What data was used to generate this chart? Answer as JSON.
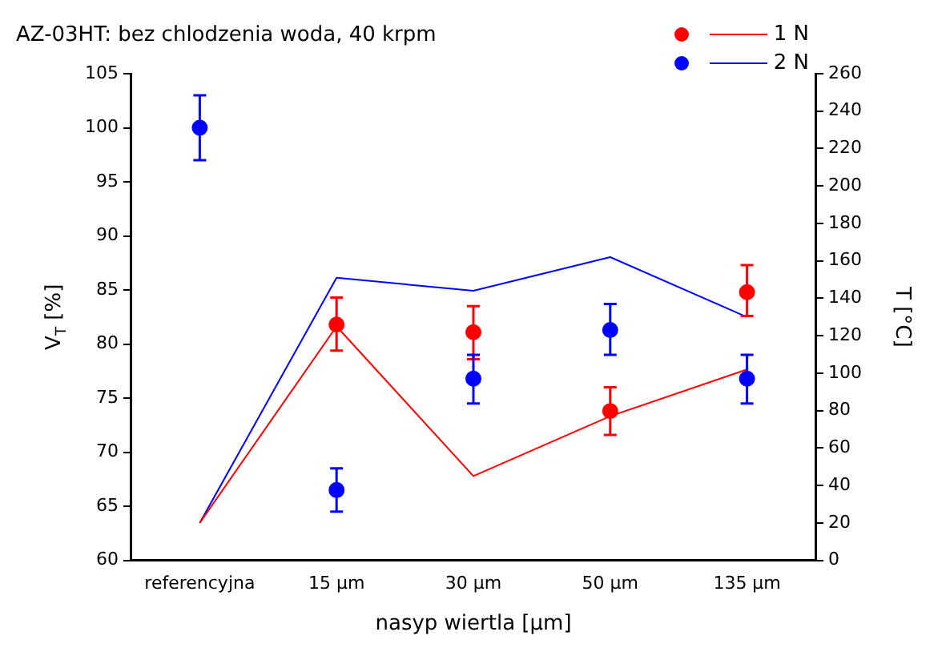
{
  "chart_data": {
    "type": "scatter",
    "title": "AZ-03HT: bez chlodzenia woda, 40 krpm",
    "xlabel": "nasyp wiertla [µm]",
    "ylabel": "V$_{T}$ [%]",
    "y2label": "T [°C]",
    "categories": [
      "referencyjna",
      "15 µm",
      "30 µm",
      "50 µm",
      "135 µm"
    ],
    "series": [
      {
        "name": "1 N",
        "marker": "circle",
        "color": "#ff0000",
        "values": [
          null,
          81.8,
          81.1,
          73.8,
          84.8
        ],
        "errors": [
          null,
          [
            79.4,
            84.3
          ],
          [
            78.6,
            83.5
          ],
          [
            71.6,
            76
          ],
          [
            82.6,
            87.3
          ]
        ]
      },
      {
        "name": "2 N",
        "marker": "circle",
        "color": "#0000ff",
        "values": [
          100,
          66.5,
          76.8,
          81.3,
          76.8
        ],
        "errors": [
          [
            97,
            103
          ],
          [
            64.5,
            68.5
          ],
          [
            74.5,
            79
          ],
          [
            79,
            83.7
          ],
          [
            74.5,
            79
          ]
        ]
      },
      {
        "type": "line",
        "marker": "none",
        "axis": "y2",
        "color": "#ff0000",
        "values": [
          20,
          125,
          45,
          77,
          102
        ]
      },
      {
        "type": "line",
        "marker": "none",
        "axis": "y2",
        "color": "#0000ff",
        "values": [
          20,
          151,
          144,
          162,
          130
        ]
      }
    ],
    "ylim": [
      60,
      105
    ],
    "yticks": [
      60,
      65,
      70,
      75,
      80,
      85,
      90,
      95,
      100,
      105
    ],
    "y2lim": [
      0,
      260
    ],
    "y2ticks": [
      0,
      20,
      40,
      60,
      80,
      100,
      120,
      140,
      160,
      180,
      200,
      220,
      240,
      260
    ],
    "line_style": "solid",
    "grid": false,
    "legend": "top right"
  }
}
